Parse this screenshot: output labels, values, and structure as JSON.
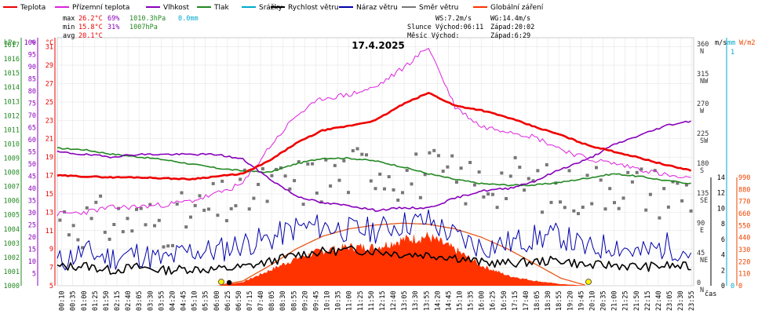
{
  "chart_data": {
    "type": "line",
    "title": "17.4.2025",
    "legend": [
      {
        "name": "Teplota",
        "color": "#ee0000"
      },
      {
        "name": "Přízemní teplota",
        "color": "#dd22dd"
      },
      {
        "name": "Vlhkost",
        "color": "#8800bb"
      },
      {
        "name": "Tlak",
        "color": "#228822"
      },
      {
        "name": "Srážky",
        "color": "#00aacc"
      },
      {
        "name": "Rychlost větru",
        "color": "#000000"
      },
      {
        "name": "Náraz větru",
        "color": "#0000aa"
      },
      {
        "name": "Směr větru",
        "color": "#777777"
      },
      {
        "name": "Globální záření",
        "color": "#ff3300"
      }
    ],
    "stats": {
      "max": {
        "label": "max",
        "temp": "26.2°C",
        "hum": "69%",
        "press": "1010.3hPa",
        "rain": "0.0mm"
      },
      "min": {
        "label": "min",
        "temp": "15.8°C",
        "hum": "31%",
        "press": "1007hPa"
      },
      "avg": {
        "label": "avg",
        "temp": "20.1°C"
      }
    },
    "wind_info": {
      "ws": "WS:7.2m/s",
      "wg": "WG:14.4m/s",
      "sun": "Slunce Východ:06:11",
      "sun_set": "Západ:20:02",
      "moon": "Měsíc  Východ:",
      "moon_set": "Západ:6:29"
    },
    "axis_units": {
      "hpa": "hPa",
      "pct": "%",
      "degc": "°C",
      "ms": "m/s",
      "mm": "mm",
      "wm2": "W/m2",
      "cas": "čas"
    },
    "axes": {
      "hpa_ticks": [
        1000,
        1001,
        1002,
        1003,
        1004,
        1005,
        1006,
        1007,
        1008,
        1009,
        1010,
        1011,
        1012,
        1013,
        1014,
        1015,
        1016,
        1017
      ],
      "pct_ticks": [
        5,
        10,
        15,
        20,
        25,
        30,
        35,
        40,
        45,
        50,
        55,
        60,
        65,
        70,
        75,
        80,
        85,
        90,
        95,
        100
      ],
      "degc_ticks": [
        5,
        7,
        9,
        11,
        13,
        15,
        17,
        19,
        21,
        23,
        25,
        27,
        29,
        31
      ],
      "dir_ticks": [
        {
          "v": 0,
          "label": "0"
        },
        {
          "v": 45,
          "label": "45"
        },
        {
          "v": 90,
          "label": "90"
        },
        {
          "v": 135,
          "label": "135"
        },
        {
          "v": 180,
          "label": "180"
        },
        {
          "v": 225,
          "label": "225"
        },
        {
          "v": 270,
          "label": "270"
        },
        {
          "v": 315,
          "label": "315"
        },
        {
          "v": 360,
          "label": "360"
        }
      ],
      "dir_names": [
        "N",
        "NE",
        "E",
        "SE",
        "S",
        "SW",
        "W",
        "NW",
        "N"
      ],
      "ms_ticks": [
        0,
        2,
        4,
        6,
        8,
        10,
        12,
        14
      ],
      "mm_ticks": [
        0,
        1
      ],
      "wm2_ticks": [
        0,
        110,
        220,
        330,
        440,
        550,
        660,
        770,
        880,
        990
      ],
      "time_labels": [
        "00:10",
        "00:35",
        "01:00",
        "01:25",
        "01:50",
        "02:15",
        "02:40",
        "03:05",
        "03:30",
        "03:55",
        "04:20",
        "04:45",
        "05:10",
        "05:35",
        "06:00",
        "06:25",
        "06:50",
        "07:15",
        "07:40",
        "08:05",
        "08:30",
        "08:55",
        "09:20",
        "09:45",
        "10:10",
        "10:35",
        "11:00",
        "11:25",
        "11:50",
        "12:15",
        "12:40",
        "13:05",
        "13:30",
        "13:55",
        "14:20",
        "14:45",
        "15:10",
        "15:35",
        "16:00",
        "16:25",
        "16:50",
        "17:15",
        "17:40",
        "18:05",
        "18:30",
        "18:55",
        "19:20",
        "19:45",
        "20:10",
        "20:35",
        "21:00",
        "21:25",
        "21:50",
        "22:15",
        "22:40",
        "23:05",
        "23:30",
        "23:55"
      ]
    },
    "hours": [
      0,
      1,
      2,
      3,
      4,
      5,
      6,
      7,
      8,
      9,
      10,
      11,
      12,
      13,
      14,
      15,
      16,
      17,
      18,
      19,
      20,
      21,
      22,
      23,
      24
    ],
    "temp_c": [
      17.0,
      16.9,
      16.8,
      16.8,
      16.7,
      16.6,
      16.9,
      17.2,
      18.6,
      20.5,
      21.9,
      22.4,
      23.0,
      24.7,
      26.0,
      24.6,
      24.1,
      23.3,
      22.3,
      21.4,
      20.3,
      19.6,
      18.9,
      18.1,
      17.5
    ],
    "ground_temp_c": [
      12.8,
      13.0,
      13.5,
      13.6,
      13.8,
      14.2,
      15.0,
      16.1,
      20.1,
      23.5,
      25.4,
      25.8,
      26.6,
      28.6,
      31.0,
      24.5,
      22.3,
      21.9,
      21.2,
      19.9,
      18.8,
      18.3,
      17.7,
      17.0,
      16.5
    ],
    "humidity_pct": [
      55,
      54,
      53,
      54,
      54,
      54,
      54,
      52,
      44,
      37,
      34,
      33,
      31,
      32,
      32,
      36,
      39,
      40,
      43,
      48,
      52,
      58,
      62,
      66,
      68
    ],
    "pressure_hpa": [
      1009.7,
      1009.6,
      1009.3,
      1009.1,
      1008.9,
      1008.6,
      1008.3,
      1008.1,
      1008.0,
      1008.6,
      1009.0,
      1009.0,
      1008.8,
      1008.4,
      1007.9,
      1007.5,
      1007.2,
      1007.1,
      1007.1,
      1007.3,
      1007.6,
      1007.9,
      1007.7,
      1007.4,
      1007.2
    ],
    "wind_avg_ms": [
      2.4,
      2.6,
      2.0,
      2.4,
      2.0,
      2.2,
      2.1,
      2.4,
      3.1,
      4.0,
      4.4,
      4.6,
      4.5,
      4.1,
      4.0,
      3.7,
      3.0,
      2.9,
      3.1,
      3.3,
      2.6,
      2.7,
      2.4,
      2.6,
      2.4
    ],
    "wind_gust_ms": [
      3.0,
      4.4,
      3.6,
      4.2,
      3.2,
      4.5,
      4.5,
      5.5,
      6.0,
      7.5,
      7.7,
      7.2,
      7.2,
      8.0,
      8.4,
      6.4,
      5.0,
      5.5,
      6.2,
      6.5,
      4.6,
      5.4,
      4.1,
      5.2,
      4.2
    ],
    "wind_dir_deg": [
      104,
      95,
      98,
      98,
      95,
      105,
      118,
      135,
      148,
      155,
      162,
      172,
      183,
      165,
      170,
      160,
      154,
      160,
      152,
      140,
      148,
      155,
      148,
      140,
      142
    ],
    "radiation_wm2": [
      0,
      0,
      0,
      0,
      0,
      0,
      0,
      34,
      140,
      250,
      320,
      355,
      352,
      420,
      450,
      330,
      185,
      92,
      45,
      15,
      0,
      0,
      0,
      0,
      0
    ],
    "clear_sky_wm2": [
      0,
      0,
      0,
      0,
      0,
      0,
      0,
      44,
      182,
      335,
      452,
      520,
      555,
      572,
      562,
      520,
      443,
      335,
      202,
      68,
      0,
      0,
      0,
      0,
      0
    ],
    "sun_markers": [
      "06:11",
      "20:02"
    ],
    "moon_marker": "06:29"
  }
}
